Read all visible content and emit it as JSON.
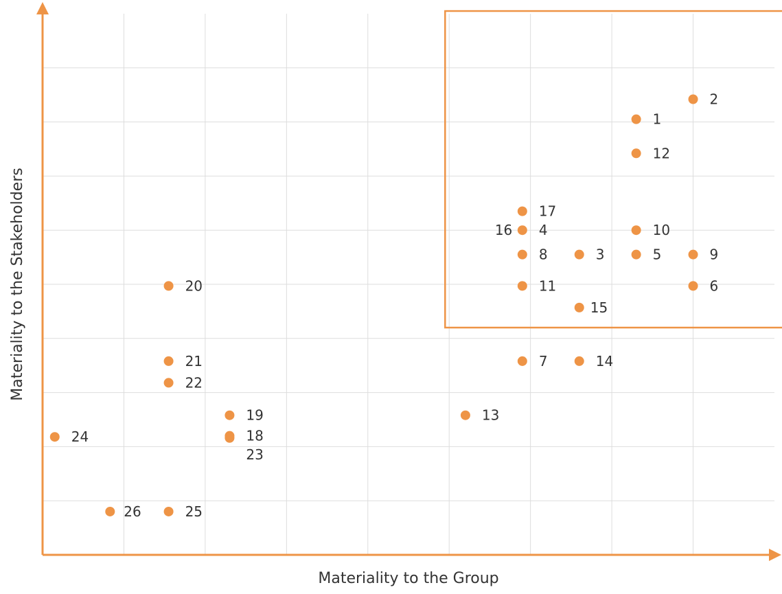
{
  "chart_data": {
    "type": "scatter",
    "title": "",
    "xlabel": "Materiality to the Group",
    "ylabel": "Materiality to the Stakeholders",
    "xlim": [
      0,
      9
    ],
    "ylim": [
      0,
      10
    ],
    "grid": true,
    "tick_labels_shown": false,
    "colors": {
      "accent": "#EE9446",
      "axis": "#EE9446",
      "grid": "#DDDDDD",
      "text": "#333333"
    },
    "highlight_region": {
      "x": [
        4.95,
        9.2
      ],
      "y": [
        4.2,
        10.05
      ]
    },
    "points": [
      {
        "label": "1",
        "x": 7.3,
        "y": 8.05
      },
      {
        "label": "2",
        "x": 8.0,
        "y": 8.42
      },
      {
        "label": "3",
        "x": 6.6,
        "y": 5.55
      },
      {
        "label": "4",
        "x": 5.9,
        "y": 6.0
      },
      {
        "label": "5",
        "x": 7.3,
        "y": 5.55
      },
      {
        "label": "6",
        "x": 8.0,
        "y": 4.97
      },
      {
        "label": "7",
        "x": 5.9,
        "y": 3.58
      },
      {
        "label": "8",
        "x": 5.9,
        "y": 5.55
      },
      {
        "label": "9",
        "x": 8.0,
        "y": 5.55
      },
      {
        "label": "10",
        "x": 7.3,
        "y": 6.0
      },
      {
        "label": "11",
        "x": 5.9,
        "y": 4.97
      },
      {
        "label": "12",
        "x": 7.3,
        "y": 7.42
      },
      {
        "label": "13",
        "x": 5.2,
        "y": 2.58
      },
      {
        "label": "14",
        "x": 6.6,
        "y": 3.58
      },
      {
        "label": "15",
        "x": 6.6,
        "y": 4.57
      },
      {
        "label": "16",
        "x": 5.9,
        "y": 6.0
      },
      {
        "label": "17",
        "x": 5.9,
        "y": 6.35
      },
      {
        "label": "18",
        "x": 2.3,
        "y": 2.2
      },
      {
        "label": "19",
        "x": 2.3,
        "y": 2.58
      },
      {
        "label": "20",
        "x": 1.55,
        "y": 4.97
      },
      {
        "label": "21",
        "x": 1.55,
        "y": 3.58
      },
      {
        "label": "22",
        "x": 1.55,
        "y": 3.18
      },
      {
        "label": "23",
        "x": 2.3,
        "y": 2.16
      },
      {
        "label": "24",
        "x": 0.15,
        "y": 2.18
      },
      {
        "label": "25",
        "x": 1.55,
        "y": 0.8
      },
      {
        "label": "26",
        "x": 0.83,
        "y": 0.8
      }
    ]
  }
}
